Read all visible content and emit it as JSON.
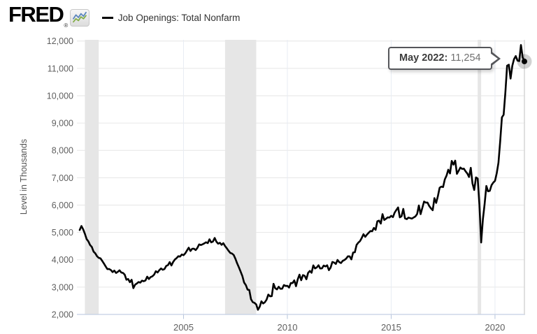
{
  "header": {
    "logo_text": "FRED",
    "registered_mark": "®",
    "legend_label": "Job Openings: Total Nonfarm"
  },
  "tooltip": {
    "label": "May 2022:",
    "value": "11,254"
  },
  "y_axis_title": "Level in Thousands",
  "colors": {
    "line": "#000000",
    "recession_band": "#e6e6e6",
    "grid_horizontal": "#e6e6e6",
    "grid_vertical": "#e8ecf3",
    "axis_line": "#c3cfe3",
    "tick_mark": "#b6c4dc",
    "tick_label": "#5f5f5f",
    "crosshair": "#d9d9d9",
    "marker_dot": "#000000",
    "marker_halo": "rgba(0,0,0,0.18)",
    "icon_blue": "#5b86bd",
    "icon_green": "#83ad4a"
  },
  "chart_data": {
    "type": "line",
    "title": "Job Openings: Total Nonfarm",
    "ylabel": "Level in Thousands",
    "xlabel": "",
    "ylim": [
      2000,
      12000
    ],
    "grid": true,
    "y_ticks": [
      "2,000",
      "3,000",
      "4,000",
      "5,000",
      "6,000",
      "7,000",
      "8,000",
      "9,000",
      "10,000",
      "11,000",
      "12,000"
    ],
    "x_ticks": [
      "2005",
      "2010",
      "2015",
      "2020"
    ],
    "frequency": "monthly",
    "x_start": "2000-12",
    "x_end": "2022-05",
    "recession_bands": [
      {
        "start": "2001-03",
        "end": "2001-11"
      },
      {
        "start": "2007-12",
        "end": "2009-06"
      },
      {
        "start": "2020-02",
        "end": "2020-04"
      }
    ],
    "last_point": {
      "date_label": "May 2022",
      "value": 11254
    },
    "series": [
      {
        "name": "Job Openings: Total Nonfarm",
        "color": "#000000",
        "values": [
          5088,
          5234,
          5112,
          4948,
          4755,
          4673,
          4538,
          4468,
          4299,
          4235,
          4129,
          4069,
          4051,
          3958,
          3861,
          3755,
          3658,
          3663,
          3624,
          3550,
          3603,
          3518,
          3558,
          3614,
          3535,
          3518,
          3456,
          3270,
          3295,
          3179,
          3267,
          2962,
          3087,
          3132,
          3184,
          3163,
          3236,
          3215,
          3242,
          3381,
          3296,
          3366,
          3394,
          3455,
          3582,
          3534,
          3619,
          3681,
          3633,
          3660,
          3774,
          3803,
          3913,
          3791,
          3920,
          4008,
          4060,
          4129,
          4115,
          4193,
          4166,
          4235,
          4339,
          4441,
          4321,
          4402,
          4404,
          4354,
          4433,
          4561,
          4539,
          4564,
          4599,
          4639,
          4608,
          4748,
          4635,
          4666,
          4797,
          4661,
          4588,
          4620,
          4546,
          4607,
          4500,
          4420,
          4329,
          4250,
          4228,
          4174,
          4033,
          3865,
          3722,
          3565,
          3404,
          3167,
          3075,
          2909,
          2893,
          2555,
          2450,
          2422,
          2367,
          2170,
          2279,
          2480,
          2400,
          2446,
          2542,
          2727,
          2663,
          2669,
          3121,
          2957,
          2916,
          3013,
          2938,
          2940,
          3075,
          3044,
          3046,
          2983,
          3149,
          3147,
          3247,
          3033,
          3282,
          3456,
          3251,
          3437,
          3414,
          3287,
          3520,
          3592,
          3525,
          3795,
          3682,
          3720,
          3797,
          3681,
          3686,
          3788,
          3755,
          3797,
          3620,
          3713,
          3919,
          3899,
          3845,
          3993,
          3913,
          3880,
          3959,
          3991,
          4043,
          4125,
          4123,
          4014,
          4263,
          4274,
          4541,
          4627,
          4682,
          4799,
          4935,
          4838,
          4920,
          4987,
          5048,
          5042,
          5164,
          5094,
          5405,
          5431,
          5323,
          5668,
          5455,
          5500,
          5550,
          5543,
          5607,
          5559,
          5724,
          5822,
          5913,
          5551,
          5591,
          5859,
          5512,
          5486,
          5542,
          5522,
          5505,
          5547,
          5584,
          5673,
          5986,
          5668,
          5896,
          6129,
          6090,
          6090,
          5964,
          5879,
          5812,
          6253,
          6078,
          6327,
          6633,
          6675,
          6659,
          6939,
          7077,
          7293,
          7157,
          7615,
          7479,
          7625,
          7142,
          7255,
          7372,
          7322,
          7332,
          7234,
          7154,
          7027,
          7362,
          6787,
          6552,
          7012,
          6972,
          6011,
          4630,
          5477,
          6036,
          6697,
          6503,
          6521,
          6727,
          6822,
          6885,
          7162,
          7549,
          8331,
          9208,
          9305,
          10123,
          11098,
          11132,
          10625,
          11093,
          11338,
          11448,
          11283,
          11266,
          11855,
          11400,
          11254
        ]
      }
    ]
  }
}
